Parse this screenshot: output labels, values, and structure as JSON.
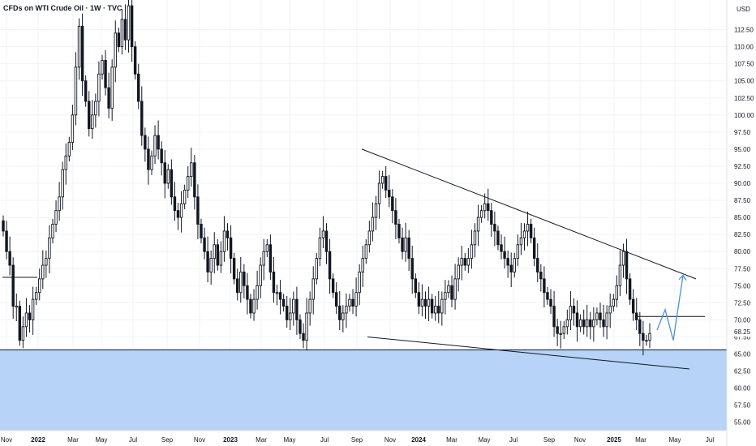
{
  "chart_data": {
    "type": "candlestick",
    "title": "CFDs on WTI Crude Oil · 1W · TVC",
    "currency_label": "USD",
    "ylim": [
      54,
      117.5
    ],
    "y_ticks": [
      "55.00",
      "57.50",
      "60.00",
      "62.50",
      "65.00",
      "67.50",
      "70.00",
      "72.50",
      "75.00",
      "77.50",
      "80.00",
      "82.50",
      "85.00",
      "87.50",
      "90.00",
      "92.50",
      "95.00",
      "97.50",
      "100.00",
      "102.50",
      "105.00",
      "107.50",
      "110.00",
      "112.50"
    ],
    "price_tag": "68.25",
    "x_ticks": [
      "Nov",
      "2022",
      "Mar",
      "May",
      "Jul",
      "Sep",
      "Nov",
      "2023",
      "Mar",
      "May",
      "Jul",
      "Sep",
      "Nov",
      "2024",
      "Mar",
      "May",
      "Jul",
      "Sep",
      "Nov",
      "2025",
      "Mar",
      "May",
      "Jul"
    ],
    "bold_x_ticks": [
      "2022",
      "2023",
      "2024",
      "2025"
    ],
    "grid": true,
    "weekly_close": [
      83,
      80,
      78,
      72,
      72,
      67,
      69,
      71,
      70,
      73,
      74,
      76,
      78,
      79,
      82,
      84,
      86,
      88,
      92,
      94,
      96,
      100,
      107,
      113,
      105,
      102,
      98,
      100,
      102,
      106,
      108,
      104,
      101,
      107,
      112,
      110,
      114,
      111,
      116,
      110,
      106,
      102,
      97,
      95,
      92,
      94,
      97,
      95,
      93,
      90,
      92,
      88,
      86,
      85,
      87,
      89,
      91,
      93,
      88,
      84,
      82,
      80,
      77,
      79,
      81,
      78,
      80,
      83,
      82,
      79,
      76,
      74,
      77,
      75,
      73,
      71,
      73,
      75,
      78,
      80,
      81,
      77,
      74,
      74,
      73,
      72,
      70,
      71,
      73,
      70,
      68,
      67,
      71,
      73,
      76,
      79,
      82,
      83,
      80,
      76,
      74,
      72,
      70,
      71,
      72,
      73,
      72,
      74,
      77,
      79,
      81,
      83,
      85,
      87,
      90,
      91,
      89,
      88,
      86,
      84,
      82,
      80,
      82,
      79,
      76,
      74,
      72,
      73,
      72,
      73,
      71,
      72,
      71,
      73,
      74,
      75,
      73,
      76,
      78,
      79,
      78,
      79,
      81,
      83,
      85,
      86,
      87,
      86,
      84,
      83,
      81,
      80,
      79,
      78,
      77,
      79,
      81,
      82,
      83,
      84,
      82,
      79,
      77,
      76,
      74,
      73,
      72,
      69,
      68,
      68,
      69,
      70,
      72,
      71,
      69,
      70,
      69,
      70,
      69,
      70,
      71,
      70,
      69,
      71,
      72,
      73,
      75,
      78,
      80,
      76,
      73,
      71,
      70,
      68,
      67,
      67,
      68
    ],
    "annotations": {
      "upper_trendline": [
        "2023-09",
        "2025-06",
        95.0,
        76.0
      ],
      "lower_trendline": [
        "2023-09",
        "2025-06",
        67.5,
        62.8
      ],
      "support_zone": [
        54.0,
        65.6
      ],
      "resistance_level": 70.5,
      "projection_path": [
        68.5,
        71.5,
        67.0,
        76.5
      ]
    }
  }
}
